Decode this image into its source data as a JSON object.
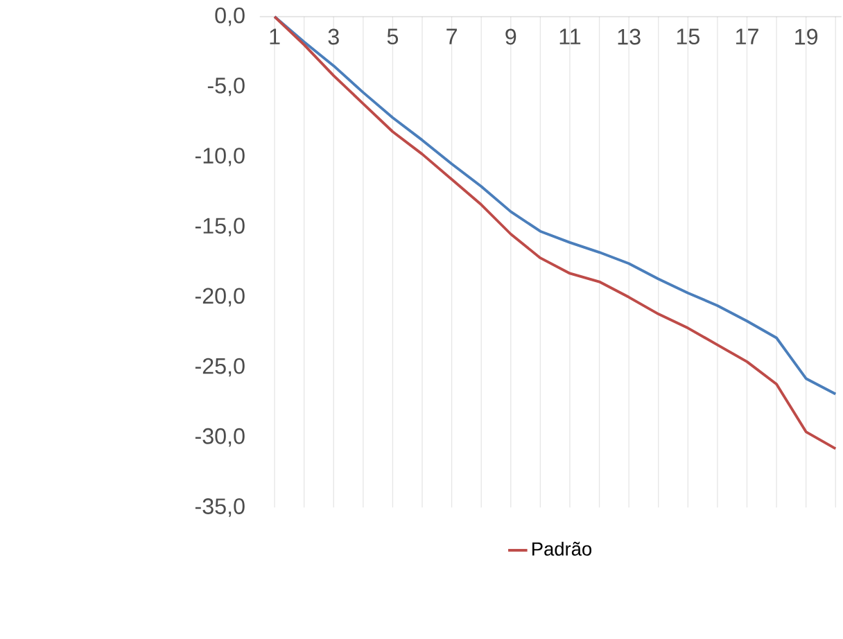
{
  "chart_data": {
    "type": "line",
    "categories": [
      "1",
      null,
      "3",
      null,
      "5",
      null,
      "7",
      null,
      "9",
      null,
      "11",
      null,
      "13",
      null,
      "15",
      null,
      "17",
      null,
      "19",
      null
    ],
    "series": [
      {
        "color": "#4a7ebb",
        "values": [
          0,
          -1.8,
          -3.5,
          -5.4,
          -7.2,
          -8.8,
          -10.5,
          -12.1,
          -13.9,
          -15.3,
          -16.1,
          -16.8,
          -17.6,
          -18.7,
          -19.7,
          -20.6,
          -21.7,
          -22.9,
          -25.8,
          -26.9
        ]
      },
      {
        "name": "Padrão",
        "color": "#be4b48",
        "values": [
          0,
          -2.0,
          -4.2,
          -6.2,
          -8.2,
          -9.8,
          -11.6,
          -13.4,
          -15.5,
          -17.2,
          -18.3,
          -18.9,
          -20.0,
          -21.2,
          -22.2,
          -23.4,
          -24.6,
          -26.2,
          -29.6,
          -30.8
        ]
      }
    ],
    "ylim": [
      -35,
      0
    ],
    "yticks": [
      {
        "value": 0,
        "label": "0,0"
      },
      {
        "value": -5,
        "label": "-5,0"
      },
      {
        "value": -10,
        "label": "-10,0"
      },
      {
        "value": -15,
        "label": "-15,0"
      },
      {
        "value": -20,
        "label": "-20,0"
      },
      {
        "value": -25,
        "label": "-25,0"
      },
      {
        "value": -30,
        "label": "-30,0"
      },
      {
        "value": -35,
        "label": "-35,0"
      }
    ],
    "grid": "x",
    "legend": "bottom",
    "marker": "none",
    "line_style": "solid"
  }
}
